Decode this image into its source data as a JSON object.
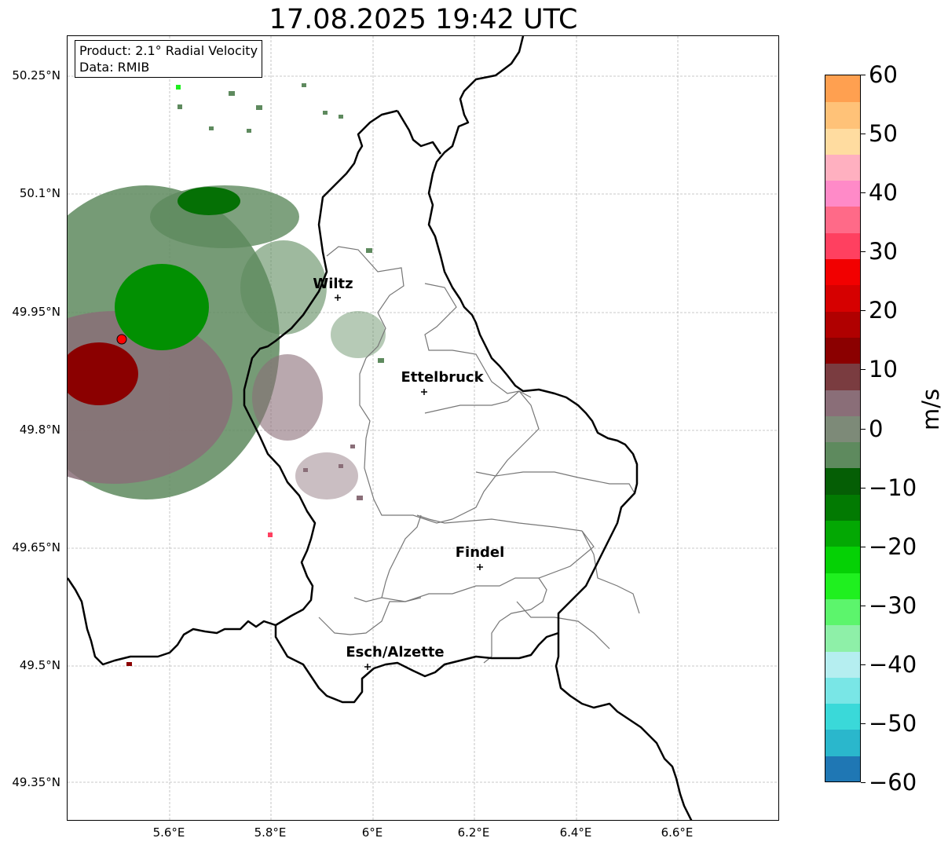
{
  "title": "17.08.2025 19:42 UTC",
  "info": {
    "product": "Product: 2.1° Radial Velocity",
    "data": "Data: RMIB"
  },
  "lat_ticks": [
    "50.25°N",
    "50.1°N",
    "49.95°N",
    "49.8°N",
    "49.65°N",
    "49.5°N",
    "49.35°N"
  ],
  "lon_ticks": [
    "5.6°E",
    "5.8°E",
    "6°E",
    "6.2°E",
    "6.4°E",
    "6.6°E"
  ],
  "cities": [
    {
      "name": "Wiltz"
    },
    {
      "name": "Ettelbruck"
    },
    {
      "name": "Findel"
    },
    {
      "name": "Esch/Alzette"
    }
  ],
  "colorbar": {
    "label": "m/s",
    "min": -60,
    "max": 60,
    "ticks": [
      "60",
      "50",
      "40",
      "30",
      "20",
      "10",
      "0",
      "−10",
      "−20",
      "−30",
      "−40",
      "−50",
      "−60"
    ],
    "colors": [
      "#1f77b4",
      "#2ab7cc",
      "#3ad9d9",
      "#79e6e6",
      "#b5eef0",
      "#8ef0a8",
      "#5cf56c",
      "#1ff01f",
      "#05d105",
      "#03a803",
      "#027a02",
      "#055e05",
      "#5e8a5e",
      "#7d8a78",
      "#8a6e78",
      "#7a3c40",
      "#8b0000",
      "#b00000",
      "#d60000",
      "#f20000",
      "#ff4060",
      "#ff6a88",
      "#ff8ac8",
      "#ffb0c0",
      "#ffdca0",
      "#ffc278",
      "#ffa050"
    ]
  }
}
